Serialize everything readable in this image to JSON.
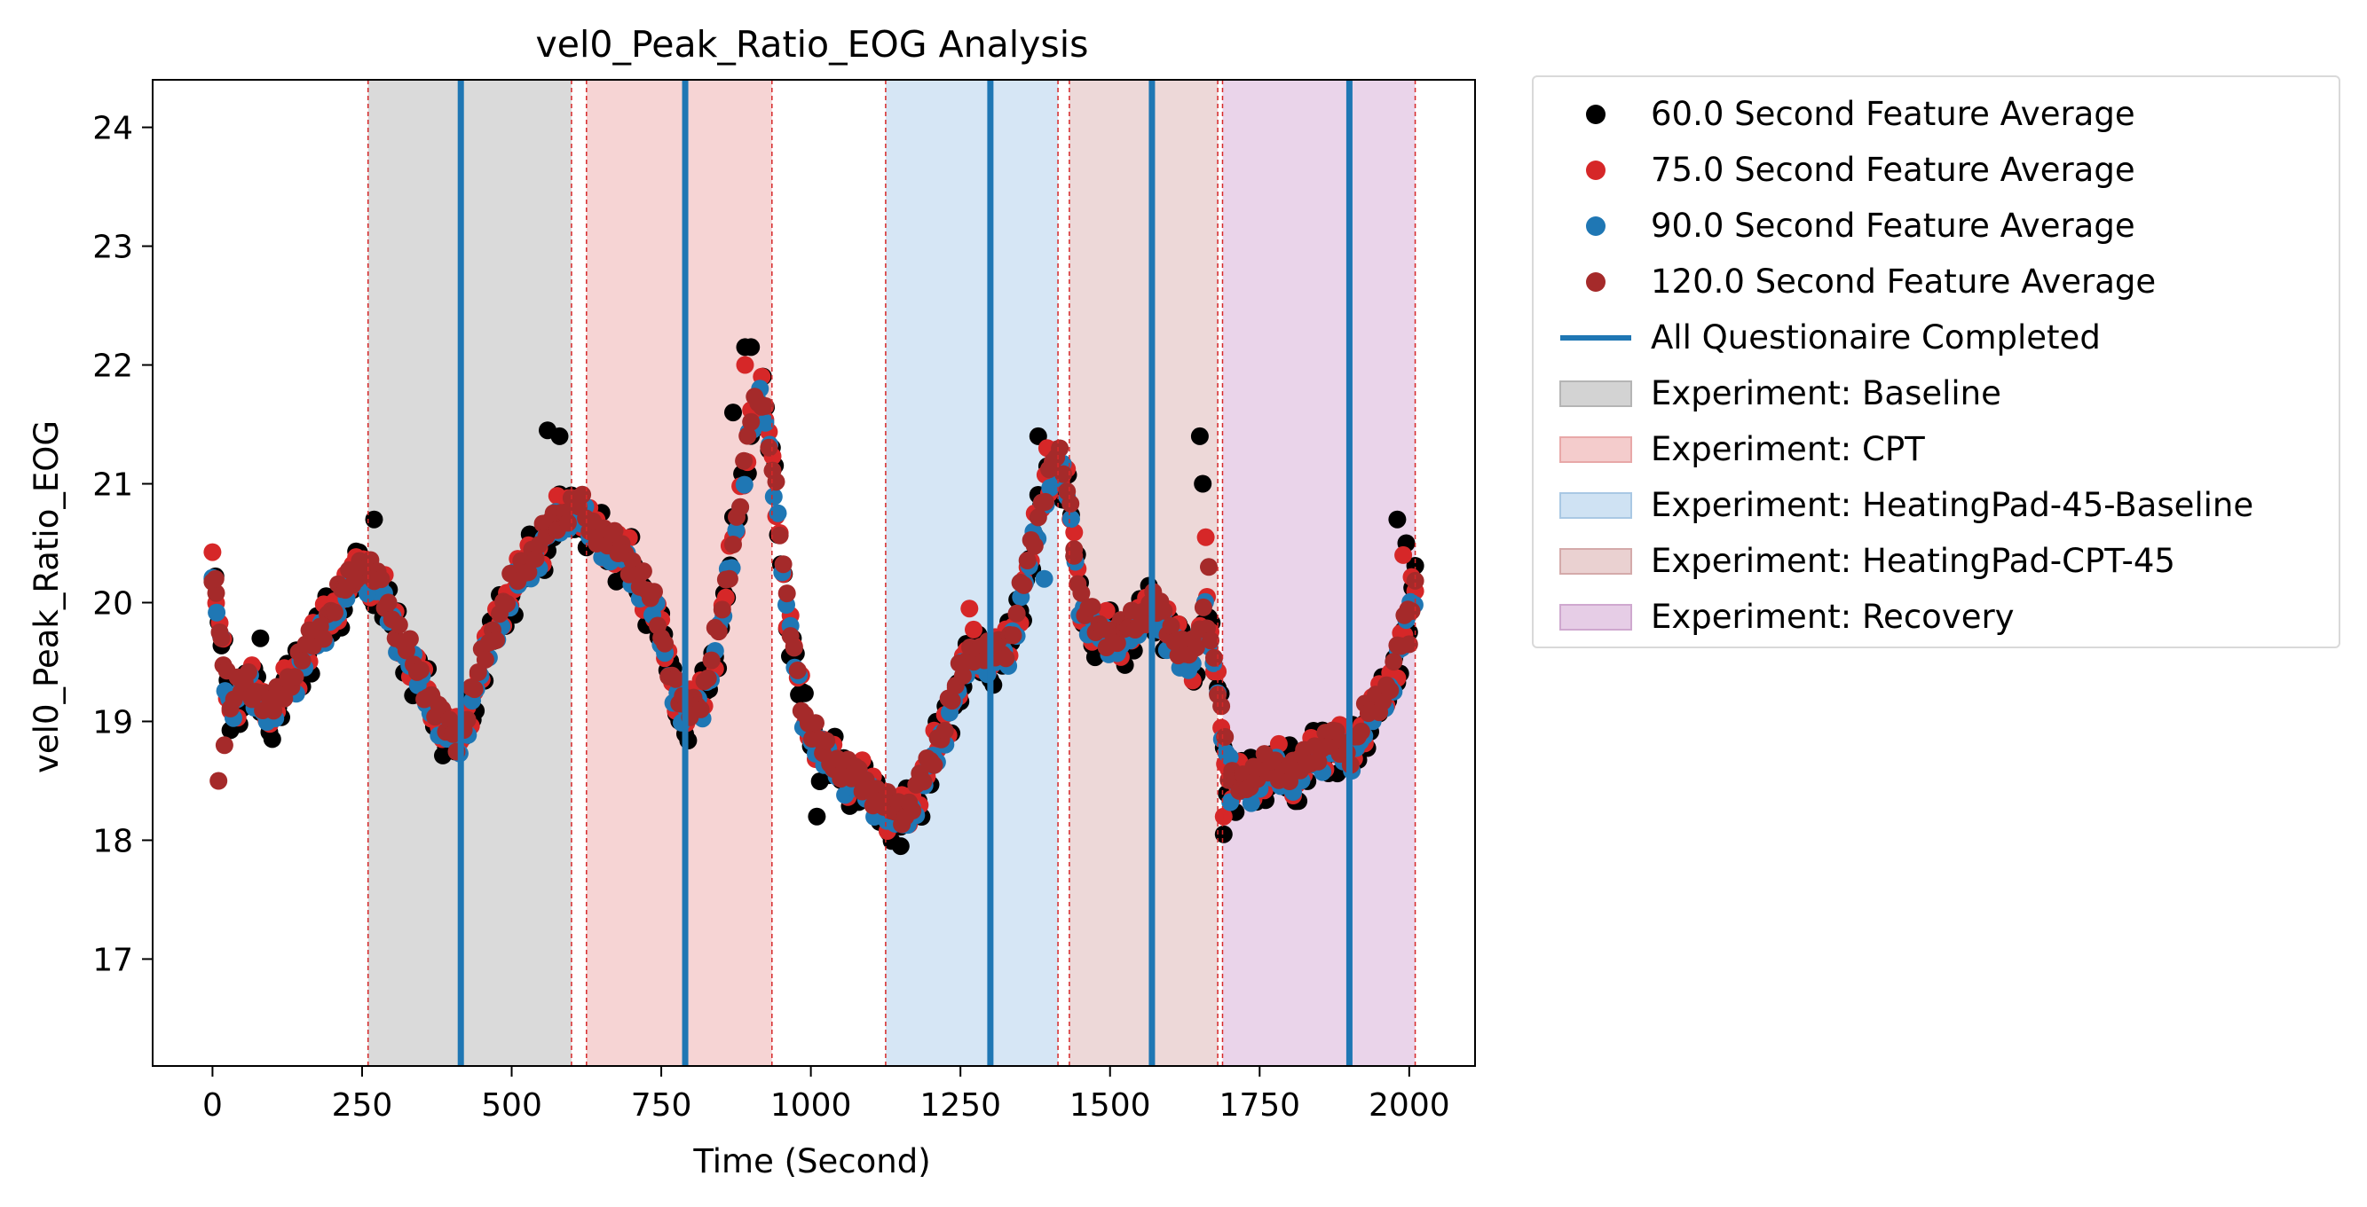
{
  "chart_data": {
    "type": "scatter",
    "title": "vel0_Peak_Ratio_EOG Analysis",
    "xlabel": "Time (Second)",
    "ylabel": "vel0_Peak_Ratio_EOG",
    "xlim": [
      -100,
      2110
    ],
    "ylim": [
      16.1,
      24.4
    ],
    "xticks": [
      0,
      250,
      500,
      750,
      1000,
      1250,
      1500,
      1750,
      2000
    ],
    "yticks": [
      17,
      18,
      19,
      20,
      21,
      22,
      23,
      24
    ],
    "grid": false,
    "legend_position": "outside-right",
    "anchors": [
      [
        0,
        20.2
      ],
      [
        30,
        19.1
      ],
      [
        60,
        19.3
      ],
      [
        100,
        19.05
      ],
      [
        150,
        19.5
      ],
      [
        200,
        19.9
      ],
      [
        250,
        20.3
      ],
      [
        280,
        20.1
      ],
      [
        320,
        19.6
      ],
      [
        360,
        19.2
      ],
      [
        390,
        18.9
      ],
      [
        410,
        18.8
      ],
      [
        430,
        19.1
      ],
      [
        460,
        19.6
      ],
      [
        500,
        20.1
      ],
      [
        540,
        20.4
      ],
      [
        580,
        20.7
      ],
      [
        610,
        20.8
      ],
      [
        630,
        20.6
      ],
      [
        660,
        20.5
      ],
      [
        700,
        20.3
      ],
      [
        740,
        19.9
      ],
      [
        770,
        19.3
      ],
      [
        790,
        19.0
      ],
      [
        820,
        19.2
      ],
      [
        850,
        19.8
      ],
      [
        880,
        20.8
      ],
      [
        900,
        21.5
      ],
      [
        920,
        21.7
      ],
      [
        940,
        21.0
      ],
      [
        960,
        19.9
      ],
      [
        990,
        19.0
      ],
      [
        1020,
        18.7
      ],
      [
        1070,
        18.5
      ],
      [
        1100,
        18.4
      ],
      [
        1130,
        18.2
      ],
      [
        1160,
        18.2
      ],
      [
        1200,
        18.6
      ],
      [
        1240,
        19.2
      ],
      [
        1270,
        19.6
      ],
      [
        1300,
        19.5
      ],
      [
        1330,
        19.6
      ],
      [
        1360,
        20.2
      ],
      [
        1390,
        20.9
      ],
      [
        1410,
        21.2
      ],
      [
        1430,
        20.9
      ],
      [
        1450,
        20.0
      ],
      [
        1480,
        19.7
      ],
      [
        1520,
        19.7
      ],
      [
        1550,
        19.8
      ],
      [
        1570,
        20.0
      ],
      [
        1600,
        19.7
      ],
      [
        1640,
        19.5
      ],
      [
        1660,
        19.9
      ],
      [
        1680,
        19.3
      ],
      [
        1700,
        18.4
      ],
      [
        1740,
        18.5
      ],
      [
        1780,
        18.6
      ],
      [
        1810,
        18.5
      ],
      [
        1840,
        18.7
      ],
      [
        1870,
        18.8
      ],
      [
        1900,
        18.7
      ],
      [
        1930,
        19.0
      ],
      [
        1960,
        19.2
      ],
      [
        1980,
        19.5
      ],
      [
        2010,
        20.1
      ]
    ],
    "series": [
      {
        "name": "60.0 Second Feature Average",
        "color": "#000000",
        "amp": 0.16,
        "offset": 0.0,
        "step": 5,
        "outliers": [
          [
            80,
            19.7
          ],
          [
            270,
            20.7
          ],
          [
            560,
            21.45
          ],
          [
            580,
            21.4
          ],
          [
            890,
            22.15
          ],
          [
            900,
            22.15
          ],
          [
            870,
            21.6
          ],
          [
            1010,
            18.2
          ],
          [
            1150,
            17.95
          ],
          [
            1380,
            21.4
          ],
          [
            1650,
            21.4
          ],
          [
            1655,
            21.0
          ],
          [
            1690,
            18.05
          ],
          [
            1800,
            18.8
          ],
          [
            1980,
            20.7
          ],
          [
            1995,
            20.5
          ]
        ]
      },
      {
        "name": "75.0 Second Feature Average",
        "color": "#d62728",
        "amp": 0.13,
        "offset": 0.03,
        "step": 6,
        "outliers": [
          [
            890,
            22.0
          ],
          [
            1660,
            20.55
          ],
          [
            1395,
            21.3
          ],
          [
            1265,
            19.95
          ],
          [
            1690,
            18.2
          ],
          [
            1990,
            20.4
          ]
        ]
      },
      {
        "name": "90.0 Second Feature Average",
        "color": "#1f77b4",
        "amp": 0.1,
        "offset": -0.02,
        "step": 7,
        "outliers": [
          [
            915,
            21.8
          ],
          [
            1390,
            20.2
          ],
          [
            1595,
            19.6
          ],
          [
            1700,
            18.7
          ]
        ]
      },
      {
        "name": "120.0 Second Feature Average",
        "color": "#a52a2a",
        "amp": 0.09,
        "offset": 0.05,
        "step": 6,
        "outliers": [
          [
            5,
            20.2
          ],
          [
            10,
            18.5
          ],
          [
            20,
            18.8
          ],
          [
            15,
            19.7
          ],
          [
            1440,
            20.45
          ],
          [
            1665,
            20.3
          ],
          [
            2000,
            19.65
          ]
        ]
      }
    ],
    "questionnaire_lines": {
      "name": "All Questionaire Completed",
      "color": "#1f77b4",
      "x": [
        415,
        790,
        1300,
        1570,
        1900
      ]
    },
    "phase_boundaries": [
      260,
      600,
      625,
      935,
      1125,
      1413,
      1432,
      1680,
      1688,
      2010
    ],
    "regions": [
      {
        "name": "Experiment: Baseline",
        "color": "#d3d3d3",
        "start": 260,
        "end": 600
      },
      {
        "name": "Experiment: CPT",
        "color": "#f4cccc",
        "start": 625,
        "end": 935
      },
      {
        "name": "Experiment: HeatingPad-45-Baseline",
        "color": "#cfe2f3",
        "start": 1125,
        "end": 1413
      },
      {
        "name": "Experiment: HeatingPad-CPT-45",
        "color": "#ead1d1",
        "start": 1432,
        "end": 1680
      },
      {
        "name": "Experiment: Recovery",
        "color": "#e6cde6",
        "start": 1688,
        "end": 2010
      }
    ]
  }
}
